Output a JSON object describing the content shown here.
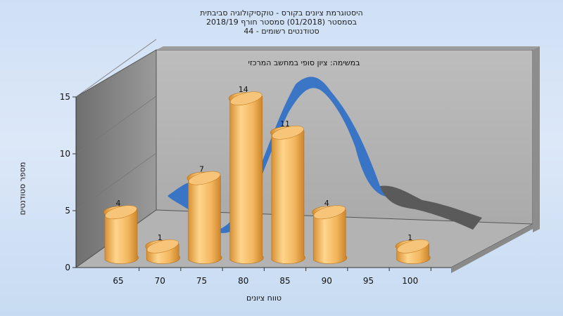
{
  "title_lines": [
    "היסטוגרמת ציונים בקורס - טוקסיקולוגיה סביבתית",
    "בסמסטר  (01/2018)  סמסטר חורף 2018/19",
    "סטודנטים רשומים - 44"
  ],
  "chart_data": {
    "type": "bar",
    "task_label": "במשימה: ציון סופי במחשב המרכזי",
    "categories": [
      "65",
      "70",
      "75",
      "80",
      "85",
      "90",
      "95",
      "100"
    ],
    "values": [
      4,
      1,
      7,
      14,
      11,
      4,
      0,
      1
    ],
    "data_labels": [
      "4",
      "1",
      "7",
      "14",
      "11",
      "4",
      "",
      "1"
    ],
    "xlabel": "טווח ציונים",
    "ylabel": "מספר סטודנטים",
    "ylim": [
      0,
      15
    ],
    "yticks": [
      "0",
      "5",
      "10",
      "15"
    ],
    "grid": true,
    "colors": {
      "bar": "#f0b860",
      "curve": "#2f6fc7",
      "curve_tail": "#5a5a5a"
    }
  }
}
